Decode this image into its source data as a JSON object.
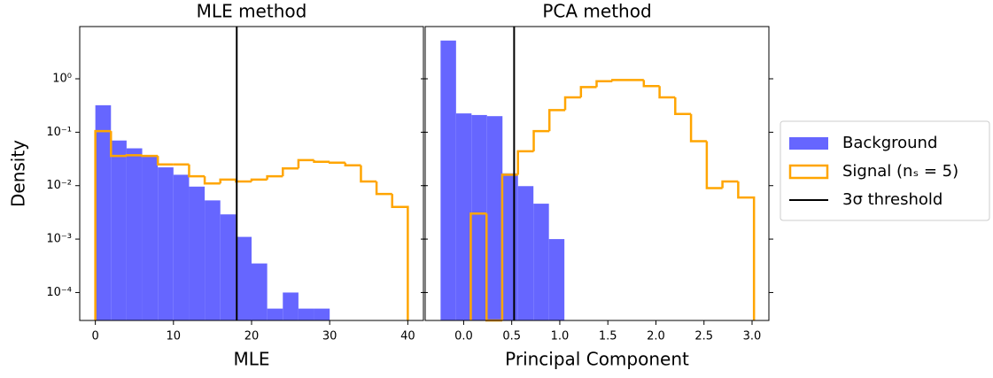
{
  "chart_data": [
    {
      "type": "histogram",
      "title": "MLE method",
      "xlabel": "MLE",
      "ylabel": "Density",
      "xlim": [
        -2,
        42
      ],
      "xticks": [
        0,
        10,
        20,
        30,
        40
      ],
      "ylim": [
        3e-05,
        9.5
      ],
      "log_y": true,
      "yticks": [
        {
          "value": 0.0001,
          "label": "10⁻⁴"
        },
        {
          "value": 0.001,
          "label": "10⁻³"
        },
        {
          "value": 0.01,
          "label": "10⁻²"
        },
        {
          "value": 0.1,
          "label": "10⁻¹"
        },
        {
          "value": 1,
          "label": "10⁰"
        }
      ],
      "legend": "outside right",
      "series": [
        {
          "name": "Background",
          "color": "#6666ff",
          "style": "filled",
          "bins": [
            0,
            2,
            4,
            6,
            8,
            10,
            12,
            14,
            16,
            18,
            20,
            22,
            24,
            26,
            28,
            30
          ],
          "values": [
            0.32,
            0.07,
            0.05,
            0.037,
            0.022,
            0.016,
            0.0096,
            0.0053,
            0.0029,
            0.0011,
            0.00035,
            5e-05,
            0.0001,
            5e-05,
            5e-05
          ]
        },
        {
          "name": "Signal (nₛ = 5)",
          "color": "#ffa500",
          "style": "step",
          "bins": [
            0,
            2,
            4,
            6,
            8,
            10,
            12,
            14,
            16,
            18,
            20,
            22,
            24,
            26,
            28,
            30,
            32,
            34,
            36,
            38,
            40
          ],
          "values": [
            0.105,
            0.036,
            0.037,
            0.036,
            0.025,
            0.025,
            0.015,
            0.011,
            0.013,
            0.012,
            0.013,
            0.015,
            0.021,
            0.03,
            0.028,
            0.027,
            0.024,
            0.012,
            0.007,
            0.004
          ]
        }
      ],
      "threshold": {
        "name": "3σ threshold",
        "value": 18.1,
        "color": "#000000"
      }
    },
    {
      "type": "histogram",
      "title": "PCA method",
      "xlabel": "Principal Component",
      "xlim": [
        -0.4,
        3.175
      ],
      "xticks": [
        {
          "value": 0,
          "label": "0.0"
        },
        {
          "value": 0.5,
          "label": "0.5"
        },
        {
          "value": 1,
          "label": "1.0"
        },
        {
          "value": 1.5,
          "label": "1.5"
        },
        {
          "value": 2,
          "label": "2.0"
        },
        {
          "value": 2.5,
          "label": "2.5"
        },
        {
          "value": 3,
          "label": "3.0"
        }
      ],
      "ylim": [
        3e-05,
        9.5
      ],
      "log_y": true,
      "yticks": [
        0.0001,
        0.001,
        0.01,
        0.1,
        1
      ],
      "series": [
        {
          "color": "#6666ff",
          "style": "filled",
          "bins": [
            -0.24,
            -0.079,
            0.082,
            0.243,
            0.404,
            0.565,
            0.726,
            0.887,
            1.048
          ],
          "values": [
            5.2,
            0.225,
            0.21,
            0.2,
            0.017,
            0.0098,
            0.0046,
            0.001
          ]
        },
        {
          "color": "#ffa500",
          "style": "step",
          "bins": [
            0.074,
            0.238,
            0.401,
            0.565,
            0.729,
            0.892,
            1.056,
            1.22,
            1.383,
            1.547,
            1.71,
            1.874,
            2.038,
            2.201,
            2.365,
            2.529,
            2.692,
            2.856,
            3.02
          ],
          "values": [
            0.003,
            0,
            0.016,
            0.044,
            0.105,
            0.26,
            0.45,
            0.7,
            0.9,
            0.95,
            0.95,
            0.73,
            0.45,
            0.22,
            0.068,
            0.009,
            0.012,
            0.006
          ]
        }
      ],
      "threshold": {
        "value": 0.525,
        "color": "#000000"
      }
    }
  ]
}
